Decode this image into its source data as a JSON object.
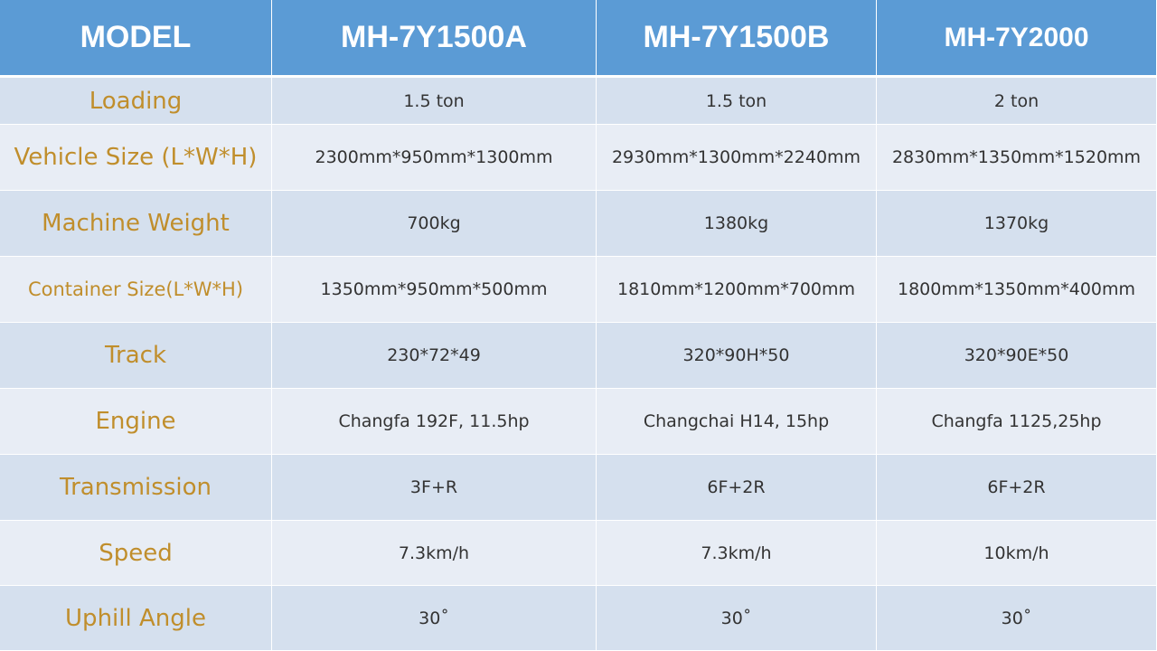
{
  "table": {
    "header": [
      "MODEL",
      "MH-7Y1500A",
      "MH-7Y1500B",
      "MH-7Y2000"
    ],
    "rows": [
      [
        "Loading",
        "1.5 ton",
        "1.5 ton",
        "2 ton"
      ],
      [
        "Vehicle Size (L*W*H)",
        "2300mm*950mm*1300mm",
        "2930mm*1300mm*2240mm",
        "2830mm*1350mm*1520mm"
      ],
      [
        "Machine Weight",
        "700kg",
        "1380kg",
        "1370kg"
      ],
      [
        "Container Size(L*W*H)",
        "1350mm*950mm*500mm",
        "1810mm*1200mm*700mm",
        "1800mm*1350mm*400mm"
      ],
      [
        "Track",
        "230*72*49",
        "320*90H*50",
        "320*90E*50"
      ],
      [
        "Engine",
        "Changfa 192F, 11.5hp",
        "Changchai H14, 15hp",
        "Changfa 1125,25hp"
      ],
      [
        "Transmission",
        "3F+R",
        "6F+2R",
        "6F+2R"
      ],
      [
        "Speed",
        "7.3km/h",
        "7.3km/h",
        "10km/h"
      ],
      [
        "Uphill Angle",
        "30˚",
        "30˚",
        "30˚"
      ]
    ]
  }
}
